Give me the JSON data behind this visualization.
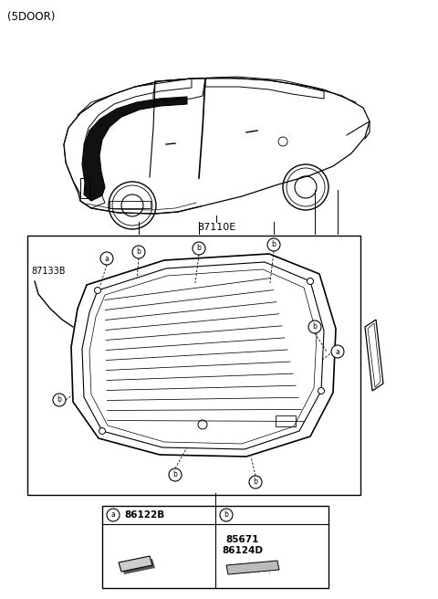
{
  "title": "(5DOOR)",
  "bg_color": "#ffffff",
  "label_87110E": "87110E",
  "label_87133B": "87133B",
  "legend_a_label": "86122B",
  "legend_b1_label": "85671",
  "legend_b2_label": "86124D",
  "label_a": "a",
  "label_b": "b"
}
